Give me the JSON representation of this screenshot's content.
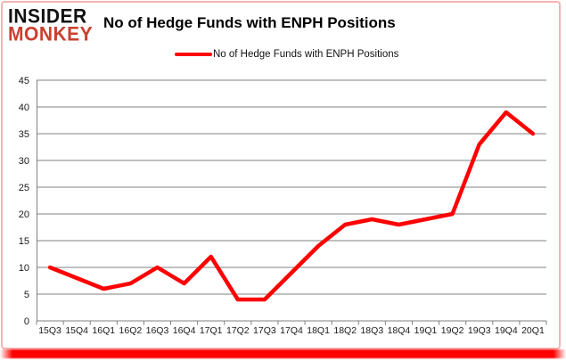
{
  "logo": {
    "line1": "INSIDER",
    "line2": "MONKEY"
  },
  "header": {
    "title": "No of Hedge Funds with ENPH Positions"
  },
  "legend": {
    "label": "No of Hedge Funds with ENPH Positions"
  },
  "colors": {
    "line": "#ff0000",
    "logo_black": "#111111",
    "logo_red": "#c9402f",
    "grid": "#808080",
    "axis_text": "#1a1a1a",
    "card_border": "#f3b3b3",
    "bottom_bar": "#ff0000"
  },
  "chart_data": {
    "type": "line",
    "title": "No of Hedge Funds with ENPH Positions",
    "categories": [
      "15Q3",
      "15Q4",
      "16Q1",
      "16Q2",
      "16Q3",
      "16Q4",
      "17Q1",
      "17Q2",
      "17Q3",
      "17Q4",
      "18Q1",
      "18Q2",
      "18Q3",
      "18Q4",
      "19Q1",
      "19Q2",
      "19Q3",
      "19Q4",
      "20Q1"
    ],
    "series": [
      {
        "name": "No of Hedge Funds with ENPH Positions",
        "values": [
          10,
          8,
          6,
          7,
          10,
          7,
          12,
          4,
          4,
          9,
          14,
          18,
          19,
          18,
          19,
          20,
          33,
          39,
          35
        ]
      }
    ],
    "xlabel": "",
    "ylabel": "",
    "ylim": [
      0,
      45
    ],
    "ytick_step": 5,
    "grid": "horizontal",
    "legend_position": "top-center"
  }
}
